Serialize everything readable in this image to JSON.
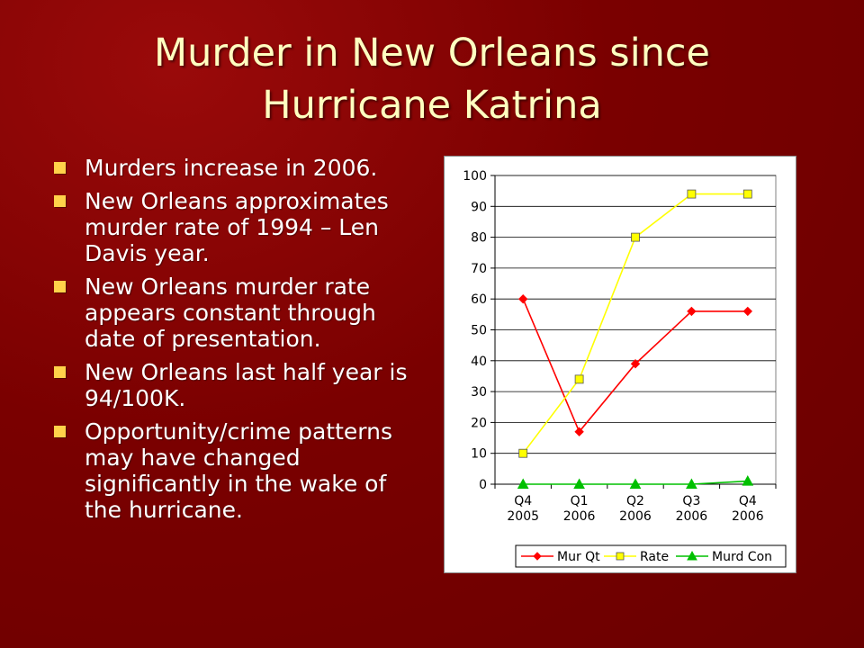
{
  "slide": {
    "title_line1": "Murder in New Orleans since",
    "title_line2": "Hurricane Katrina",
    "bullets": [
      "Murders increase in 2006.",
      "New Orleans approximates murder rate of 1994 – Len Davis year.",
      "New Orleans murder rate appears constant through date of presentation.",
      "New Orleans last half year is 94/100K.",
      "Opportunity/crime patterns may have changed significantly in the wake of the hurricane."
    ],
    "bullet_color": "#ffd24a"
  },
  "chart_data": {
    "type": "line",
    "title": "",
    "xlabel": "",
    "ylabel": "",
    "categories": [
      [
        "Q4",
        "2005"
      ],
      [
        "Q1",
        "2006"
      ],
      [
        "Q2",
        "2006"
      ],
      [
        "Q3",
        "2006"
      ],
      [
        "Q4",
        "2006"
      ]
    ],
    "ylim": [
      0,
      100
    ],
    "yticks": [
      0,
      10,
      20,
      30,
      40,
      50,
      60,
      70,
      80,
      90,
      100
    ],
    "grid": true,
    "legend_position": "bottom",
    "series": [
      {
        "name": "Mur Qt",
        "values": [
          60,
          17,
          39,
          56,
          56
        ],
        "color": "#ff0000",
        "marker": "diamond"
      },
      {
        "name": "Rate",
        "values": [
          10,
          34,
          80,
          94,
          94
        ],
        "color": "#ffff00",
        "marker": "square"
      },
      {
        "name": "Murd Con",
        "values": [
          0,
          0,
          0,
          0,
          1
        ],
        "color": "#00c000",
        "marker": "triangle"
      }
    ]
  }
}
